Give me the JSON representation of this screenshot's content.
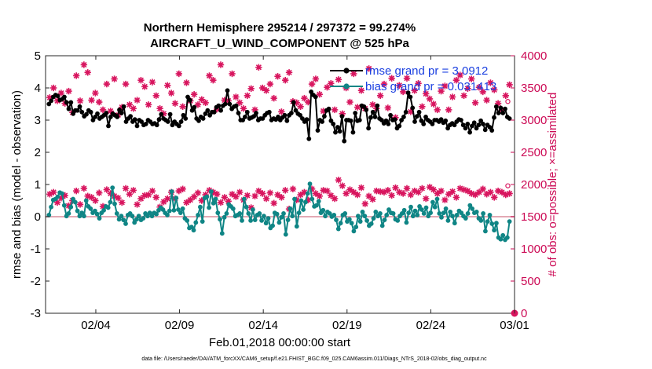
{
  "chart_data": {
    "type": "line",
    "title_line1": "Northern Hemisphere 295214 / 297372 = 99.274%",
    "title_line2": "AIRCRAFT_U_WIND_COMPONENT @ 525 hPa",
    "xlabel": "Feb.01,2018 00:00:00 start",
    "ylabel_left": "rmse and bias (model - observation)",
    "ylabel_right": "# of obs: o=possible; ×=assimilated",
    "footnote": "data file: /Users/raeder/DAI/ATM_forcXX/CAM6_setup/f.e21.FHIST_BGC.f09_025.CAM6assim.011/Diags_NTrS_2018-02/obs_diag_output.nc",
    "x_range_days": [
      0,
      28
    ],
    "x_ticks": [
      {
        "day": 3,
        "label": "02/04"
      },
      {
        "day": 8,
        "label": "02/09"
      },
      {
        "day": 13,
        "label": "02/14"
      },
      {
        "day": 18,
        "label": "02/19"
      },
      {
        "day": 23,
        "label": "02/24"
      },
      {
        "day": 28,
        "label": "03/01"
      }
    ],
    "ylim_left": [
      -3,
      5
    ],
    "yticks_left": [
      "-3",
      "-2",
      "-1",
      "0",
      "1",
      "2",
      "3",
      "4",
      "5"
    ],
    "ylim_right": [
      0,
      4000
    ],
    "yticks_right": [
      "0",
      "500",
      "1000",
      "1500",
      "2000",
      "2500",
      "3000",
      "3500",
      "4000"
    ],
    "legend": [
      {
        "label": "rmse grand pr = 3.0912",
        "color": "#000000"
      },
      {
        "label": "bias grand pr = 0.031413",
        "color": "#0f8585"
      }
    ],
    "zero_line": 0,
    "series": [
      {
        "name": "rmse",
        "color": "#000000",
        "axis": "left",
        "values": [
          3.5,
          3.6,
          3.72,
          3.78,
          3.75,
          3.62,
          3.65,
          3.72,
          3.55,
          3.35,
          3.55,
          3.2,
          3.3,
          3.3,
          3.42,
          3.25,
          3.12,
          3.18,
          3.3,
          3.25,
          3.0,
          3.1,
          3.2,
          3.05,
          3.1,
          3.15,
          3.22,
          2.82,
          3.1,
          3.2,
          3.15,
          3.1,
          3.32,
          3.22,
          3.42,
          2.95,
          3.05,
          3.12,
          2.95,
          3.02,
          2.82,
          3.0,
          2.95,
          2.85,
          2.88,
          3.0,
          2.95,
          2.88,
          2.9,
          2.85,
          3.02,
          3.18,
          3.05,
          3.0,
          2.95,
          3.18,
          2.85,
          2.95,
          2.88,
          2.82,
          2.95,
          3.15,
          3.05,
          3.72,
          3.62,
          3.3,
          3.4,
          3.05,
          2.98,
          3.1,
          3.05,
          3.2,
          3.3,
          3.15,
          3.25,
          3.25,
          3.4,
          3.45,
          3.3,
          3.45,
          3.5,
          3.92,
          3.5,
          3.35,
          3.42,
          3.45,
          3.22,
          3.0,
          3.0,
          3.1,
          3.25,
          3.05,
          3.08,
          3.12,
          3.22,
          3.0,
          3.05,
          3.05,
          3.15,
          3.22,
          3.25,
          3.0,
          3.05,
          3.02,
          3.1,
          3.0,
          3.08,
          3.15,
          2.98,
          3.15,
          3.22,
          3.55,
          3.3,
          3.2,
          3.15,
          3.05,
          2.95,
          3.02,
          2.42,
          3.88,
          3.78,
          3.72,
          2.68,
          3.0,
          2.95,
          3.12,
          3.3,
          3.35,
          2.98,
          2.88,
          2.62,
          2.78,
          2.65,
          3.12,
          2.35,
          3.0,
          3.0,
          2.98,
          2.62,
          3.22,
          2.98,
          3.0,
          3.45,
          3.42,
          3.32,
          2.75,
          3.08,
          3.25,
          3.1,
          3.45,
          3.05,
          3.0,
          2.9,
          2.98,
          2.88,
          3.15,
          3.0,
          3.02,
          2.75,
          2.82,
          3.0,
          3.1,
          3.25,
          3.85,
          3.72,
          3.38,
          2.95,
          3.12,
          3.25,
          2.98,
          2.88,
          3.1,
          3.0,
          2.95,
          2.88,
          3.0,
          3.0,
          2.95,
          3.02,
          2.92,
          2.98,
          2.75,
          2.85,
          2.9,
          2.85,
          2.95,
          3.02,
          3.0,
          2.85,
          2.75,
          2.88,
          2.62,
          2.82,
          2.92,
          2.75,
          2.85,
          2.98,
          2.88,
          2.7,
          2.85,
          2.78,
          2.68,
          3.08,
          3.42,
          3.22,
          3.38,
          3.22,
          3.35,
          3.1,
          3.05
        ]
      },
      {
        "name": "bias",
        "color": "#0f8585",
        "axis": "left",
        "values": [
          0.05,
          0.3,
          0.52,
          0.55,
          0.62,
          0.75,
          0.72,
          0.35,
          0.02,
          0.1,
          0.3,
          0.55,
          0.45,
          0.18,
          0.02,
          0.12,
          0.02,
          0.5,
          0.32,
          0.25,
          0.12,
          0.18,
          0.08,
          -0.05,
          0.12,
          0.2,
          0.32,
          0.28,
          0.45,
          0.9,
          0.4,
          0.1,
          -0.08,
          0.02,
          -0.1,
          -0.22,
          0.05,
          0.1,
          0.02,
          -0.18,
          -0.08,
          0.02,
          -0.1,
          -0.05,
          0.1,
          0.02,
          0.12,
          0.02,
          0.12,
          0.08,
          0.2,
          0.28,
          0.22,
          0.12,
          0.05,
          0.18,
          0.78,
          0.2,
          0.58,
          0.22,
          0.12,
          0.25,
          -0.05,
          -0.12,
          -0.35,
          -0.32,
          -0.42,
          -0.18,
          0.05,
          0.3,
          -0.15,
          0.58,
          0.62,
          0.28,
          0.78,
          0.42,
          0.55,
          0.12,
          -0.08,
          -0.52,
          -0.02,
          0.1,
          0.38,
          0.32,
          0.25,
          0.02,
          0.05,
          0.1,
          -0.12,
          0.55,
          0.3,
          0.1,
          -0.12,
          0.22,
          -0.1,
          0.05,
          0.1,
          -0.12,
          0.02,
          -0.2,
          -0.05,
          -0.35,
          -0.28,
          0.12,
          0.08,
          -0.18,
          -0.02,
          0.1,
          -0.55,
          -0.1,
          0.25,
          0.02,
          0.55,
          -0.3,
          0.12,
          0.5,
          0.22,
          0.45,
          0.72,
          1.02,
          0.55,
          0.32,
          0.35,
          0.48,
          0.12,
          0.2,
          0.02,
          0.15,
          0.1,
          0.0,
          0.05,
          -0.1,
          -0.38,
          -0.2,
          0.05,
          0.1,
          -0.15,
          -0.08,
          -0.2,
          -0.45,
          -0.32,
          0.02,
          -0.15,
          0.15,
          0.02,
          -0.12,
          -0.28,
          -0.22,
          -0.05,
          0.15,
          0.02,
          0.1,
          -0.28,
          -0.1,
          0.05,
          0.22,
          0.12,
          0.1,
          -0.08,
          -0.12,
          0.02,
          0.1,
          0.2,
          -0.18,
          0.12,
          0.3,
          0.02,
          0.18,
          0.05,
          0.32,
          0.22,
          0.1,
          0.28,
          0.02,
          0.12,
          0.45,
          0.3,
          0.55,
          0.1,
          -0.02,
          0.12,
          0.25,
          -0.12,
          0.15,
          0.02,
          -0.2,
          0.05,
          0.18,
          0.12,
          0.02,
          -0.05,
          0.1,
          0.35,
          0.25,
          0.12,
          0.15,
          -0.05,
          -0.12,
          0.1,
          -0.45,
          -0.15,
          0.05,
          -0.22,
          -0.42,
          -0.2,
          -0.65,
          -0.7,
          -0.58,
          -0.72,
          -0.65,
          -0.15
        ]
      },
      {
        "name": "obs_upper",
        "color": "#d8165f",
        "axis": "right",
        "values": [
          3350,
          3500,
          3300,
          3420,
          3260,
          3450,
          3120,
          3690,
          3300,
          3860,
          3740,
          3310,
          3420,
          3280,
          3160,
          3560,
          3140,
          3640,
          3080,
          3200,
          3560,
          3240,
          3180,
          3310,
          3620,
          3520,
          3240,
          3590,
          3380,
          3180,
          3100,
          3540,
          3420,
          3260,
          3720,
          3210,
          3580,
          3300,
          3400,
          3240,
          3320,
          3270,
          3690,
          3620,
          3170,
          3860,
          3310,
          3300,
          3720,
          3360,
          3270,
          3180,
          3380,
          3490,
          3160,
          3820,
          3500,
          3460,
          3560,
          3340,
          3680,
          3130,
          3620,
          3740,
          3290,
          3270,
          3210,
          3340,
          3280,
          3560,
          3640,
          3400,
          3140,
          3510,
          3570,
          3160,
          3630,
          3100,
          3500,
          3280,
          3720,
          3200,
          3460,
          3180,
          3800,
          3240,
          3180,
          3380,
          3560,
          3190,
          3650,
          3040,
          3540,
          3440,
          3650,
          3130,
          3460,
          3570,
          3210,
          3410,
          3330,
          3250,
          3160,
          3450,
          3530,
          3160,
          3360,
          3620,
          3700,
          3380,
          3490,
          3640,
          3270,
          3510,
          3440,
          3310,
          3580,
          3470,
          3260,
          3160,
          3380,
          3550
        ]
      },
      {
        "name": "obs_lower",
        "color": "#d8165f",
        "axis": "right",
        "values": [
          1850,
          1880,
          1720,
          1790,
          1830,
          1670,
          1750,
          1900,
          1690,
          1940,
          1820,
          1800,
          1750,
          1870,
          1660,
          1920,
          1860,
          1820,
          1790,
          1720,
          1940,
          1850,
          1910,
          1690,
          1780,
          1830,
          1840,
          1900,
          1800,
          1650,
          1730,
          1780,
          1880,
          1780,
          1900,
          1930,
          1720,
          1760,
          1810,
          1870,
          1750,
          1840,
          1910,
          1880,
          1850,
          1720,
          1800,
          1740,
          1850,
          1810,
          1880,
          1760,
          1830,
          1640,
          1820,
          1900,
          1860,
          1780,
          1870,
          1710,
          1840,
          1800,
          1910,
          1620,
          1930,
          1760,
          1840,
          1880,
          1760,
          1930,
          1860,
          1820,
          1910,
          1900,
          1830,
          1780,
          2070,
          1980,
          1860,
          1920,
          1880,
          1840,
          1950,
          1700,
          1820,
          1770,
          1900,
          1890,
          1880,
          1910,
          1830,
          1950,
          1880,
          1860,
          1940,
          1840,
          1900,
          1880,
          1940,
          1780,
          1960,
          1920,
          1860,
          1900,
          1760,
          1850,
          1890,
          1800,
          1940,
          1920,
          1900,
          1860,
          1840,
          1880,
          1930,
          1850,
          1880,
          1800,
          1900,
          1880,
          1840,
          1860
        ]
      }
    ]
  }
}
